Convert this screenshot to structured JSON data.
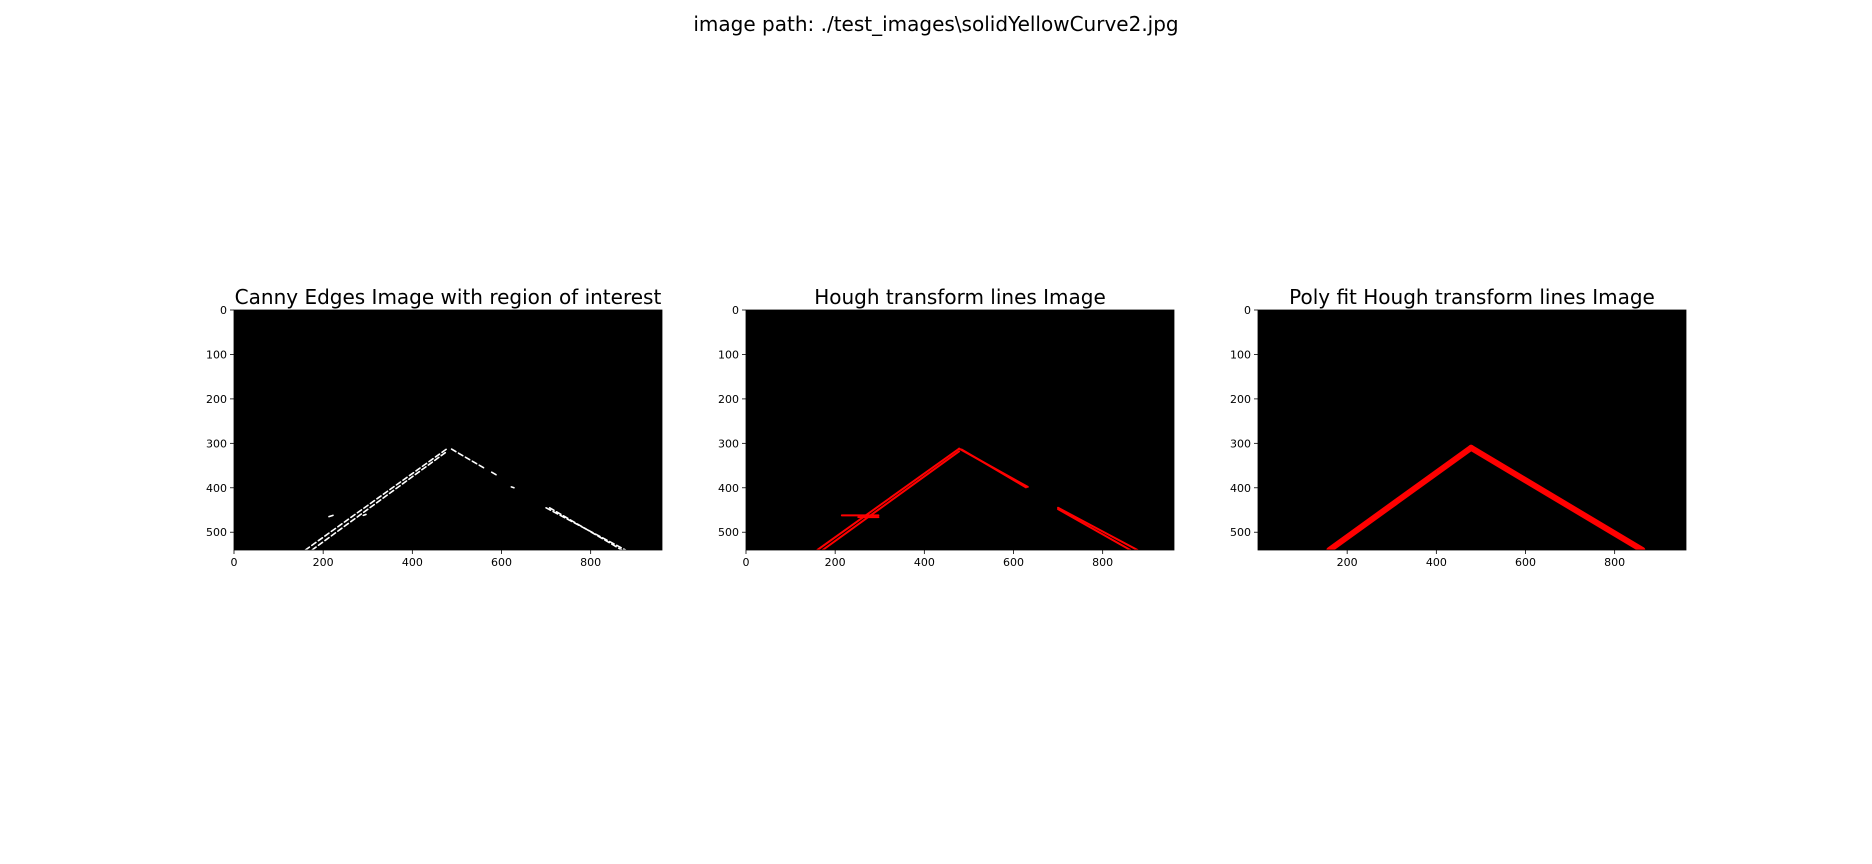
{
  "figure": {
    "suptitle": "image path: ./test_images\\solidYellowCurve2.jpg"
  },
  "colors": {
    "background": "#000000",
    "edge_color": "#ffffff",
    "line_color": "#ff0000"
  },
  "chart_data": [
    {
      "type": "image",
      "title": "Canny Edges Image with region of interest",
      "xlim": [
        0,
        960
      ],
      "ylim": [
        540,
        0
      ],
      "xticks": [
        0,
        200,
        400,
        600,
        800
      ],
      "yticks": [
        0,
        100,
        200,
        300,
        400,
        500
      ],
      "content": "white edge pixels on black",
      "segments": [
        {
          "x1": 160,
          "y1": 540,
          "x2": 478,
          "y2": 312,
          "style": "edge"
        },
        {
          "x1": 175,
          "y1": 540,
          "x2": 478,
          "y2": 318,
          "style": "edge"
        },
        {
          "x1": 488,
          "y1": 313,
          "x2": 560,
          "y2": 355,
          "style": "edge"
        },
        {
          "x1": 578,
          "y1": 365,
          "x2": 590,
          "y2": 372,
          "style": "edge"
        },
        {
          "x1": 700,
          "y1": 445,
          "x2": 878,
          "y2": 540,
          "style": "edge"
        },
        {
          "x1": 708,
          "y1": 445,
          "x2": 870,
          "y2": 540,
          "style": "edge"
        },
        {
          "x1": 213,
          "y1": 465,
          "x2": 222,
          "y2": 462,
          "style": "edge"
        },
        {
          "x1": 290,
          "y1": 462,
          "x2": 296,
          "y2": 460,
          "style": "edge"
        },
        {
          "x1": 622,
          "y1": 398,
          "x2": 628,
          "y2": 400,
          "style": "edge"
        }
      ]
    },
    {
      "type": "image",
      "title": "Hough transform lines Image",
      "xlim": [
        0,
        960
      ],
      "ylim": [
        540,
        0
      ],
      "xticks": [
        0,
        200,
        400,
        600,
        800
      ],
      "yticks": [
        0,
        100,
        200,
        300,
        400,
        500
      ],
      "content": "red Hough line segments on black",
      "segments": [
        {
          "x1": 160,
          "y1": 540,
          "x2": 478,
          "y2": 312,
          "style": "line"
        },
        {
          "x1": 172,
          "y1": 540,
          "x2": 478,
          "y2": 318,
          "style": "line"
        },
        {
          "x1": 478,
          "y1": 312,
          "x2": 632,
          "y2": 398,
          "style": "line"
        },
        {
          "x1": 484,
          "y1": 314,
          "x2": 628,
          "y2": 399,
          "style": "line"
        },
        {
          "x1": 215,
          "y1": 462,
          "x2": 297,
          "y2": 462,
          "style": "line"
        },
        {
          "x1": 252,
          "y1": 466,
          "x2": 297,
          "y2": 466,
          "style": "line"
        },
        {
          "x1": 700,
          "y1": 445,
          "x2": 878,
          "y2": 540,
          "style": "line"
        },
        {
          "x1": 700,
          "y1": 448,
          "x2": 862,
          "y2": 540,
          "style": "line"
        }
      ]
    },
    {
      "type": "image",
      "title": "Poly fit Hough transform lines Image",
      "xlim": [
        0,
        960
      ],
      "ylim": [
        540,
        0
      ],
      "xticks": [
        200,
        400,
        600,
        800
      ],
      "yticks": [
        0,
        100,
        200,
        300,
        400,
        500
      ],
      "content": "thick red fitted lane lines on black",
      "segments": [
        {
          "x1": 160,
          "y1": 540,
          "x2": 478,
          "y2": 310,
          "style": "fit"
        },
        {
          "x1": 478,
          "y1": 310,
          "x2": 862,
          "y2": 540,
          "style": "fit"
        }
      ]
    }
  ]
}
